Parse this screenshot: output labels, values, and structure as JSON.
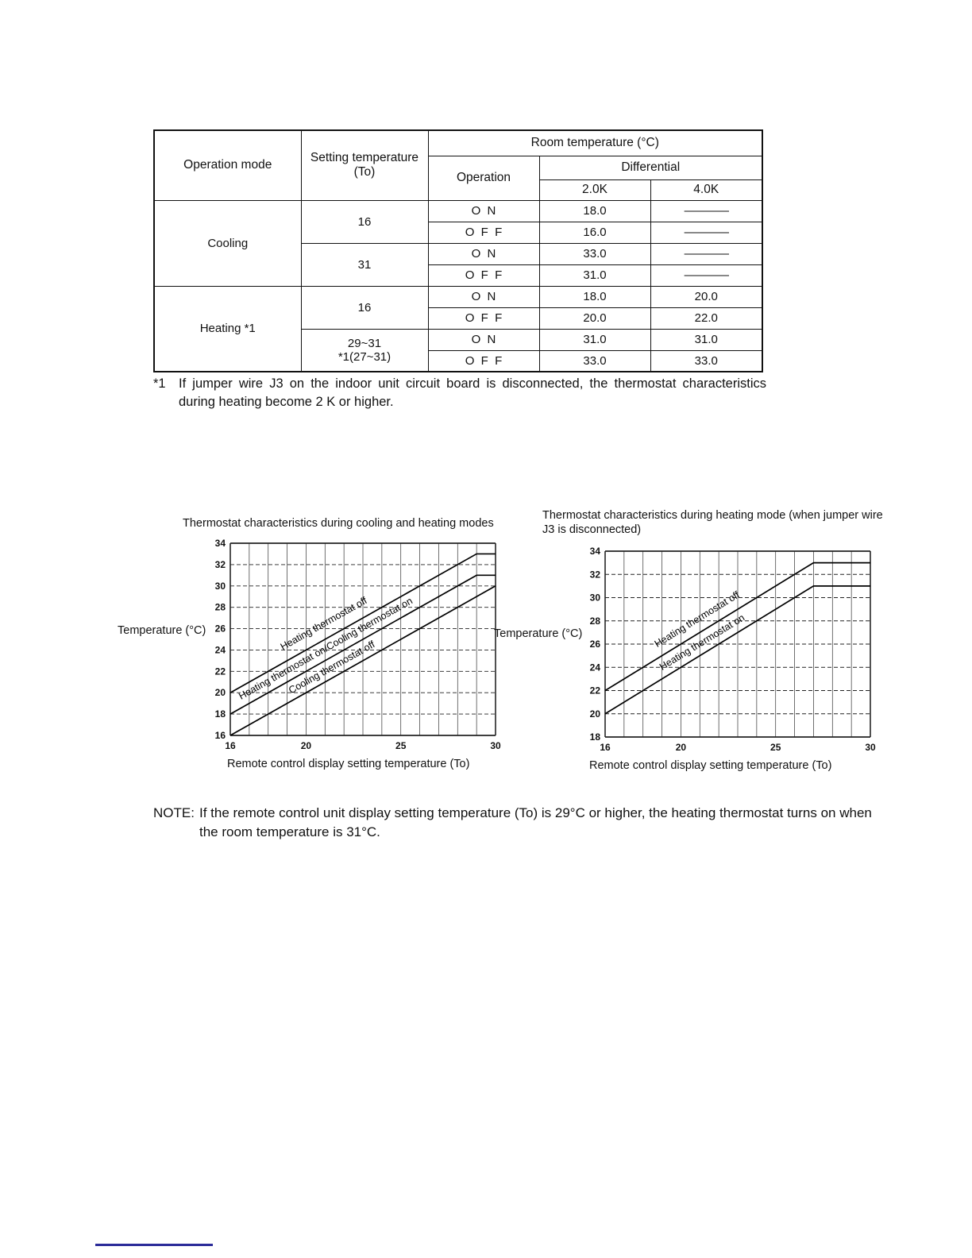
{
  "colors": {
    "ink": "#111111",
    "footer_rule": "#2b2b99"
  },
  "table": {
    "headers": {
      "operation_mode": "Operation mode",
      "setting_temperature": "Setting temperature (To)",
      "room_temperature": "Room temperature (°C)",
      "operation": "Operation",
      "differential": "Differential",
      "diff_2k": "2.0K",
      "diff_4k": "4.0K"
    },
    "body": {
      "cooling": {
        "mode": "Cooling",
        "settings": [
          {
            "value": "16",
            "rows": [
              {
                "op": "ON",
                "k20": "18.0",
                "k40": "————"
              },
              {
                "op": "OFF",
                "k20": "16.0",
                "k40": "————"
              }
            ]
          },
          {
            "value": "31",
            "rows": [
              {
                "op": "ON",
                "k20": "33.0",
                "k40": "————"
              },
              {
                "op": "OFF",
                "k20": "31.0",
                "k40": "————"
              }
            ]
          }
        ]
      },
      "heating": {
        "mode": "Heating *1",
        "settings": [
          {
            "value": "16",
            "rows": [
              {
                "op": "ON",
                "k20": "18.0",
                "k40": "20.0"
              },
              {
                "op": "OFF",
                "k20": "20.0",
                "k40": "22.0"
              }
            ]
          },
          {
            "value": "29~31",
            "value2": "*1(27~31)",
            "rows": [
              {
                "op": "ON",
                "k20": "31.0",
                "k40": "31.0"
              },
              {
                "op": "OFF",
                "k20": "33.0",
                "k40": "33.0"
              }
            ]
          }
        ]
      }
    }
  },
  "footnote": {
    "marker": "*1",
    "text": "If jumper wire J3 on the indoor unit circuit board is disconnected, the thermostat characteristics during heating become 2 K or higher."
  },
  "chart_data": [
    {
      "type": "line",
      "title": "Thermostat characteristics during cooling and heating modes",
      "ylabel": "Temperature (°C)",
      "xlabel": "Remote control display setting temperature (To)",
      "x_range": [
        16,
        30
      ],
      "y_range": [
        16,
        34
      ],
      "x_ticks": [
        16,
        20,
        25,
        30
      ],
      "y_tick_step": 2,
      "grid": "on",
      "series": [
        {
          "name": "Heating thermostat off",
          "points": [
            [
              16,
              20
            ],
            [
              29,
              33
            ],
            [
              30,
              33
            ]
          ],
          "label_x": 21.3,
          "label_dy": -14
        },
        {
          "name": "Heating thermostat on/Cooling thermostat on",
          "points": [
            [
              16,
              18
            ],
            [
              29,
              31
            ],
            [
              30,
              31
            ]
          ],
          "label_x": 21.3,
          "label_dy": -9
        },
        {
          "name": "Cooling thermostat off",
          "points": [
            [
              16,
              16
            ],
            [
              30,
              30
            ]
          ],
          "label_x": 21.6,
          "label_dy": -8
        }
      ]
    },
    {
      "type": "line",
      "title": "Thermostat characteristics during heating mode (when jumper wire J3 is disconnected)",
      "ylabel": "Temperature (°C)",
      "xlabel": "Remote control display setting temperature (To)",
      "x_range": [
        16,
        30
      ],
      "y_range": [
        18,
        34
      ],
      "x_ticks": [
        16,
        20,
        25,
        30
      ],
      "y_tick_step": 2,
      "grid": "on",
      "series": [
        {
          "name": "Heating thermostat off",
          "points": [
            [
              16,
              22
            ],
            [
              27,
              33
            ],
            [
              30,
              33
            ]
          ],
          "label_x": 21.2,
          "label_dy": -12
        },
        {
          "name": "Heating thermostat on",
          "points": [
            [
              16,
              20
            ],
            [
              27,
              31
            ],
            [
              30,
              31
            ]
          ],
          "label_x": 21.4,
          "label_dy": -9
        }
      ]
    }
  ],
  "note": {
    "label": "NOTE:",
    "text": "If the remote control unit display setting temperature (To) is 29°C or higher, the heating thermostat turns on when the room temperature is 31°C."
  }
}
